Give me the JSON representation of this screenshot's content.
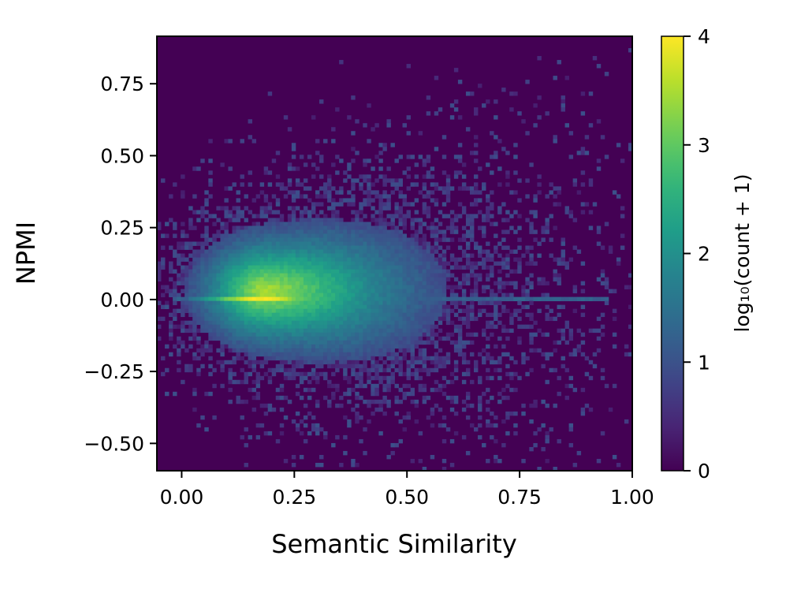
{
  "chart_data": {
    "type": "heatmap",
    "title": "",
    "xlabel": "Semantic Similarity",
    "ylabel": "NPMI",
    "xlim": [
      -0.055,
      1.0
    ],
    "ylim": [
      -0.595,
      0.915
    ],
    "x_ticks": [
      0.0,
      0.25,
      0.5,
      0.75,
      1.0
    ],
    "x_tick_labels": [
      "0.00",
      "0.25",
      "0.50",
      "0.75",
      "1.00"
    ],
    "y_ticks": [
      0.75,
      0.5,
      0.25,
      0.0,
      -0.25,
      -0.5
    ],
    "y_tick_labels": [
      "0.75",
      "0.50",
      "0.25",
      "0.00",
      "−0.25",
      "−0.50"
    ],
    "grid": false,
    "colormap": "viridis",
    "colorbar": {
      "label": "log₁₀(count + 1)",
      "range": [
        0,
        4
      ],
      "ticks": [
        0,
        1,
        2,
        3,
        4
      ],
      "tick_labels": [
        "0",
        "1",
        "2",
        "3",
        "4"
      ]
    },
    "density": {
      "peak_x": 0.18,
      "peak_y": 0.03,
      "peak_value": 3.5,
      "sigma_x_left": 0.085,
      "sigma_x_right": 0.2,
      "sigma_y_base": 0.1,
      "sigma_y_growth": 0.11,
      "zero_npmi_ridge_peak": 4.0,
      "tail_x_max": 0.95
    }
  }
}
